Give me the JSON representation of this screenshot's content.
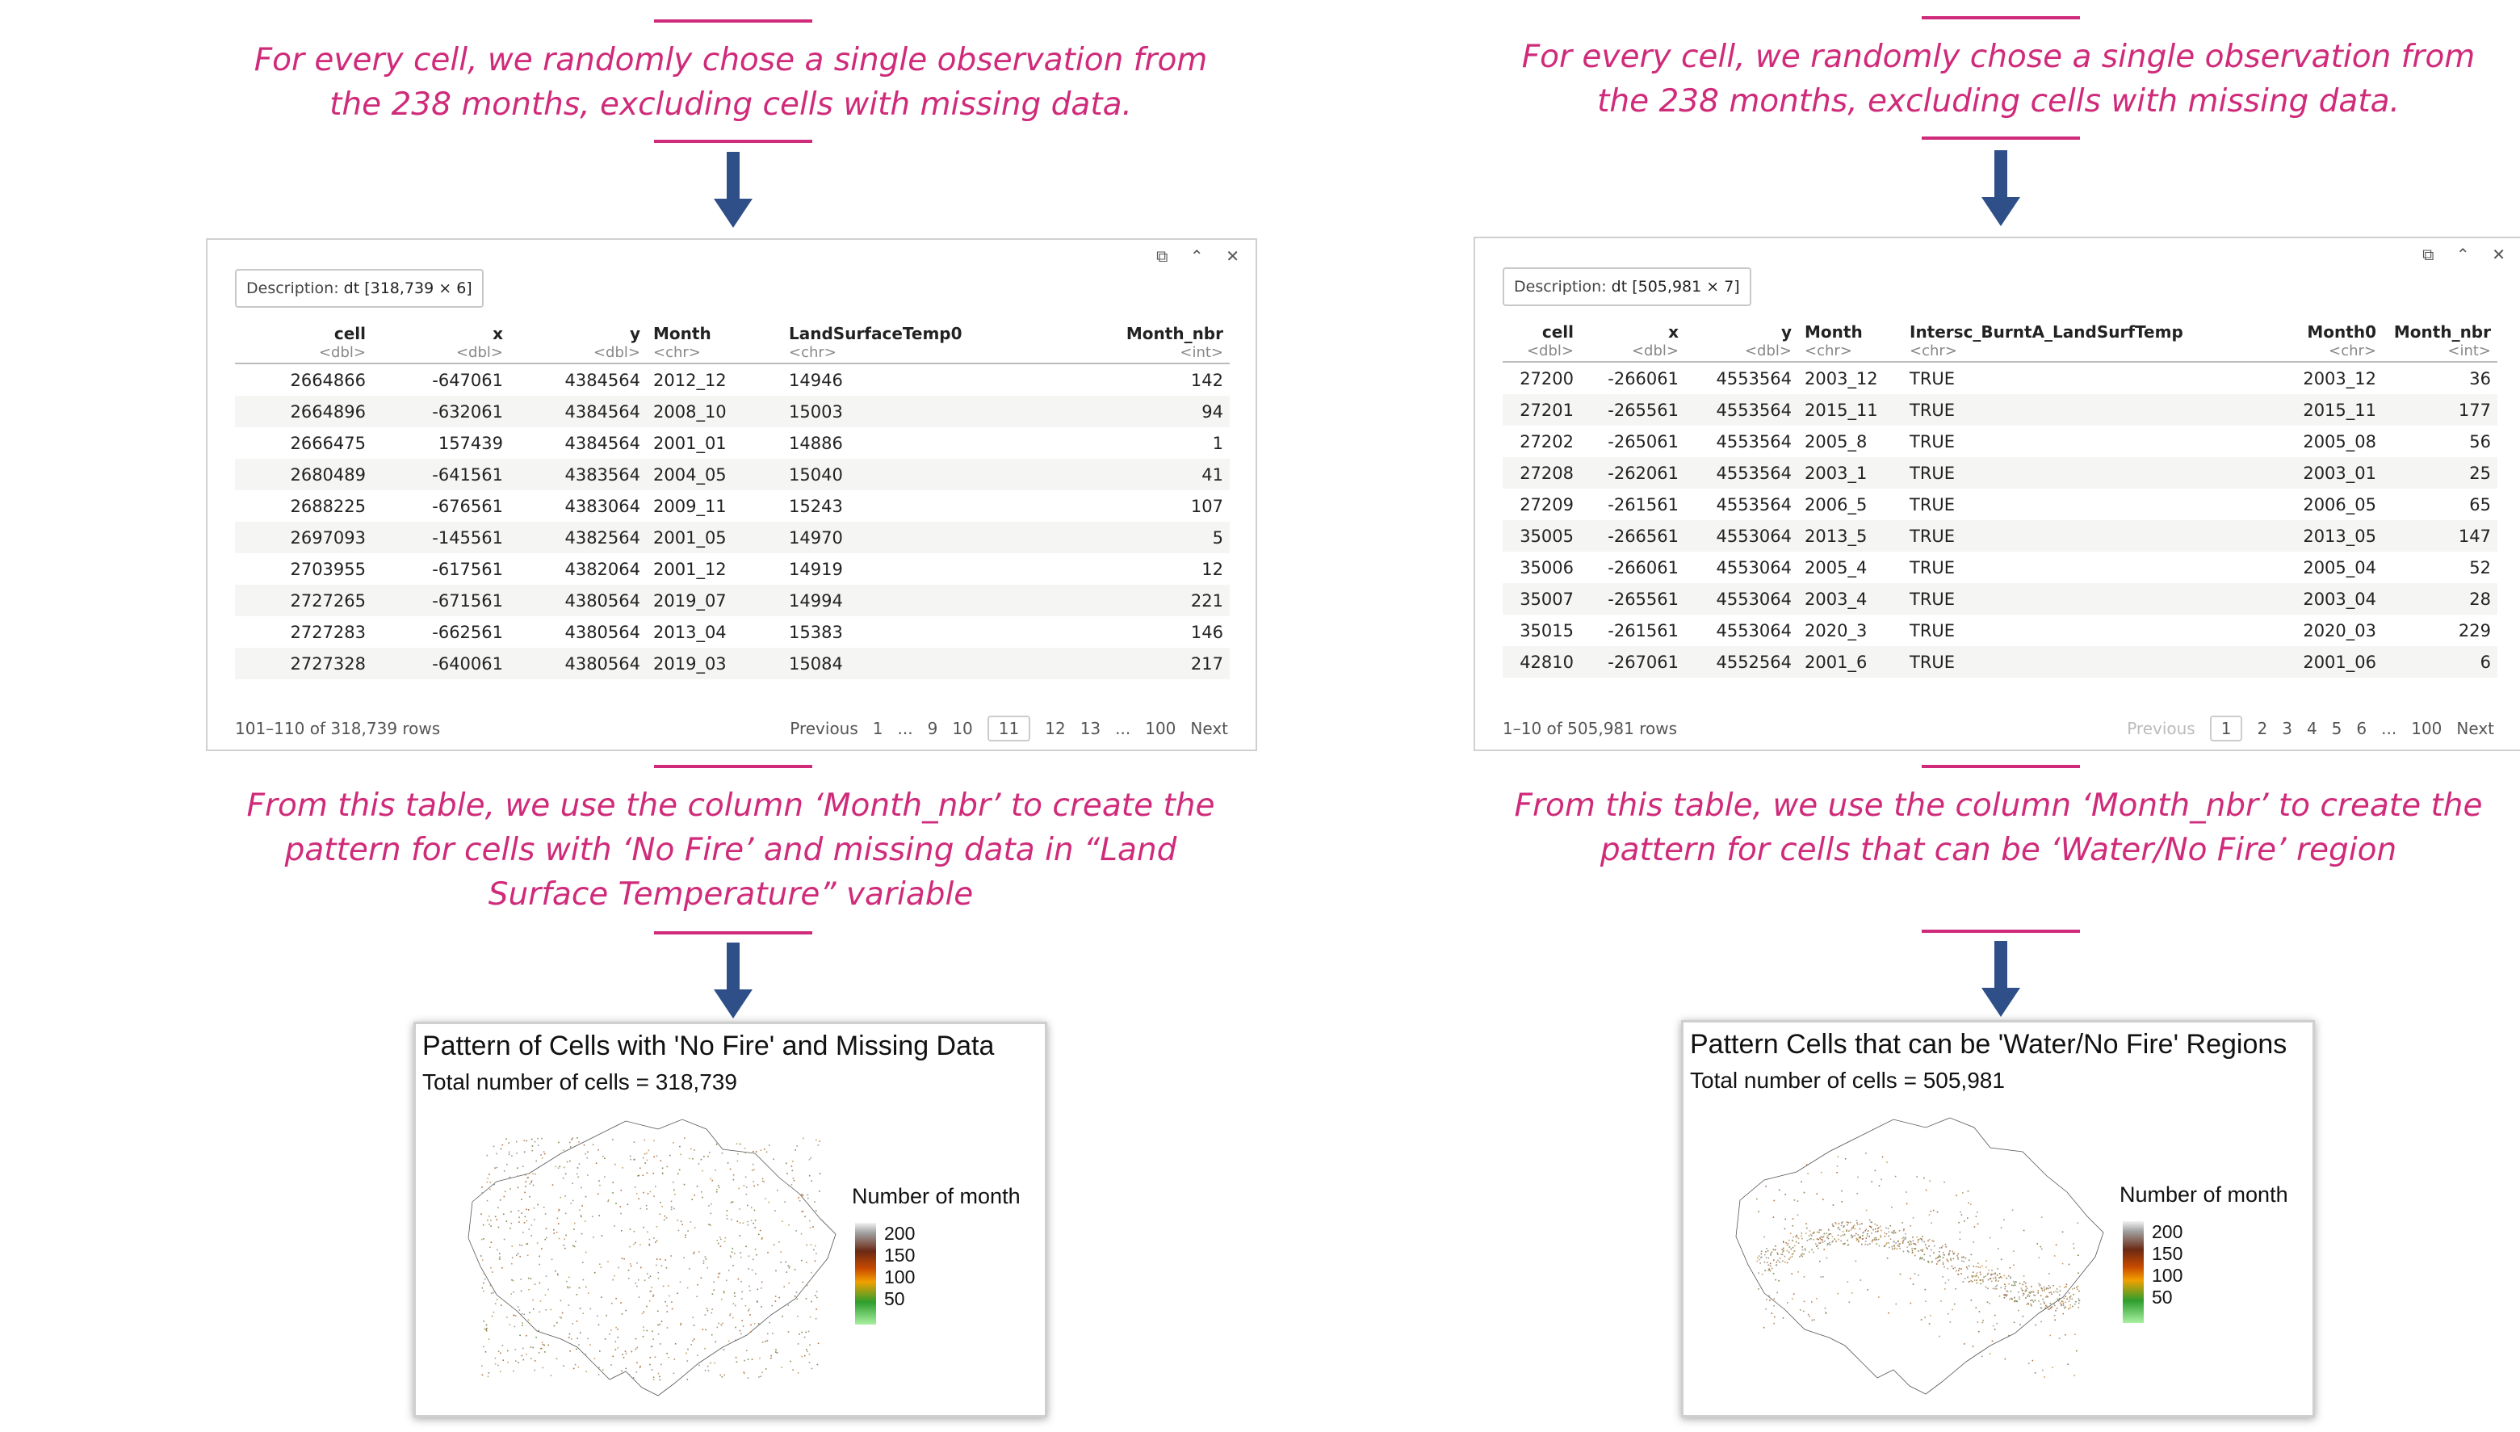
{
  "left": {
    "caption_top": "For every cell, we randomly chose a single observation from the 238 months, excluding cells with missing data.",
    "description_label": "Description:",
    "description_value": "dt [318,739 × 6]",
    "columns": [
      {
        "name": "cell",
        "type": "<dbl>"
      },
      {
        "name": "x",
        "type": "<dbl>"
      },
      {
        "name": "y",
        "type": "<dbl>"
      },
      {
        "name": "Month",
        "type": "<chr>"
      },
      {
        "name": "LandSurfaceTemp0",
        "type": "<chr>"
      },
      {
        "name": "Month_nbr",
        "type": "<int>"
      }
    ],
    "rows": [
      [
        "2664866",
        "-647061",
        "4384564",
        "2012_12",
        "14946",
        "142"
      ],
      [
        "2664896",
        "-632061",
        "4384564",
        "2008_10",
        "15003",
        "94"
      ],
      [
        "2666475",
        "157439",
        "4384564",
        "2001_01",
        "14886",
        "1"
      ],
      [
        "2680489",
        "-641561",
        "4383564",
        "2004_05",
        "15040",
        "41"
      ],
      [
        "2688225",
        "-676561",
        "4383064",
        "2009_11",
        "15243",
        "107"
      ],
      [
        "2697093",
        "-145561",
        "4382564",
        "2001_05",
        "14970",
        "5"
      ],
      [
        "2703955",
        "-617561",
        "4382064",
        "2001_12",
        "14919",
        "12"
      ],
      [
        "2727265",
        "-671561",
        "4380564",
        "2019_07",
        "14994",
        "221"
      ],
      [
        "2727283",
        "-662561",
        "4380564",
        "2013_04",
        "15383",
        "146"
      ],
      [
        "2727328",
        "-640061",
        "4380564",
        "2019_03",
        "15084",
        "217"
      ]
    ],
    "row_info": "101–110 of 318,739 rows",
    "pager": [
      "Previous",
      "1",
      "...",
      "9",
      "10",
      "11",
      "12",
      "13",
      "...",
      "100",
      "Next"
    ],
    "pager_current": "11",
    "caption_bottom": "From this table, we use the column ‘Month_nbr’ to create the pattern for cells with ‘No Fire’ and missing data in “Land Surface Temperature” variable",
    "map_title": "Pattern of Cells with 'No Fire' and Missing Data",
    "map_subtitle": "Total number of cells = 318,739",
    "legend_title": "Number of month",
    "legend_ticks": [
      "200",
      "150",
      "100",
      "50"
    ]
  },
  "right": {
    "caption_top": "For every cell, we randomly chose a single observation from the 238 months, excluding cells with missing data.",
    "description_label": "Description:",
    "description_value": "dt [505,981 × 7]",
    "columns": [
      {
        "name": "cell",
        "type": "<dbl>"
      },
      {
        "name": "x",
        "type": "<dbl>"
      },
      {
        "name": "y",
        "type": "<dbl>"
      },
      {
        "name": "Month",
        "type": "<chr>"
      },
      {
        "name": "Intersc_BurntA_LandSurfTemp",
        "type": "<chr>"
      },
      {
        "name": "Month0",
        "type": "<chr>"
      },
      {
        "name": "Month_nbr",
        "type": "<int>"
      }
    ],
    "rows": [
      [
        "27200",
        "-266061",
        "4553564",
        "2003_12",
        "TRUE",
        "2003_12",
        "36"
      ],
      [
        "27201",
        "-265561",
        "4553564",
        "2015_11",
        "TRUE",
        "2015_11",
        "177"
      ],
      [
        "27202",
        "-265061",
        "4553564",
        "2005_8",
        "TRUE",
        "2005_08",
        "56"
      ],
      [
        "27208",
        "-262061",
        "4553564",
        "2003_1",
        "TRUE",
        "2003_01",
        "25"
      ],
      [
        "27209",
        "-261561",
        "4553564",
        "2006_5",
        "TRUE",
        "2006_05",
        "65"
      ],
      [
        "35005",
        "-266561",
        "4553064",
        "2013_5",
        "TRUE",
        "2013_05",
        "147"
      ],
      [
        "35006",
        "-266061",
        "4553064",
        "2005_4",
        "TRUE",
        "2005_04",
        "52"
      ],
      [
        "35007",
        "-265561",
        "4553064",
        "2003_4",
        "TRUE",
        "2003_04",
        "28"
      ],
      [
        "35015",
        "-261561",
        "4553064",
        "2020_3",
        "TRUE",
        "2020_03",
        "229"
      ],
      [
        "42810",
        "-267061",
        "4552564",
        "2001_6",
        "TRUE",
        "2001_06",
        "6"
      ]
    ],
    "row_info": "1–10 of 505,981 rows",
    "pager": [
      "Previous",
      "1",
      "2",
      "3",
      "4",
      "5",
      "6",
      "...",
      "100",
      "Next"
    ],
    "pager_current": "1",
    "caption_bottom": "From this table, we use the column ‘Month_nbr’ to create the pattern for cells that can be ‘Water/No Fire’ region",
    "map_title": "Pattern Cells that can be 'Water/No Fire' Regions",
    "map_subtitle": "Total number of cells = 505,981",
    "legend_title": "Number of month",
    "legend_ticks": [
      "200",
      "150",
      "100",
      "50"
    ]
  },
  "colors": {
    "caption": "#cf2b7a",
    "arrow": "#2e4f88"
  },
  "icons": [
    "popout-icon",
    "collapse-icon",
    "close-icon"
  ]
}
